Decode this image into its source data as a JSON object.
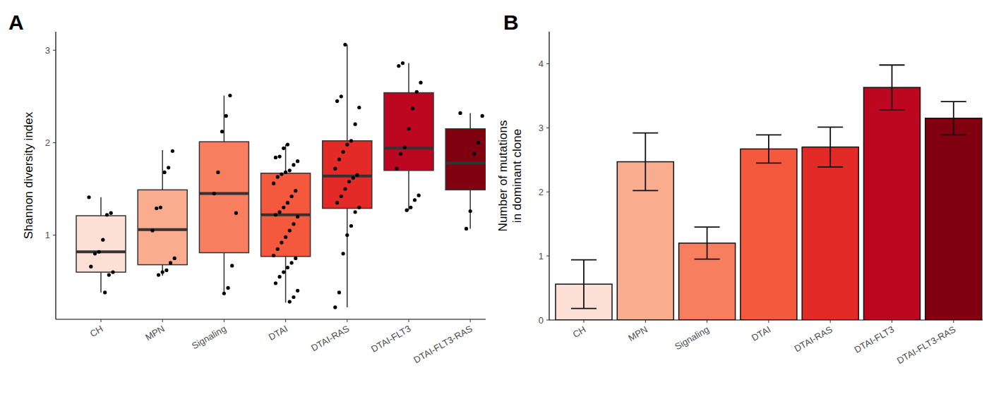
{
  "chart_data": [
    {
      "type": "box",
      "title": "A",
      "y_label": "Shannon diversity index",
      "categories": [
        "CH",
        "MPN",
        "Signaling",
        "DTAI",
        "DTAI-RAS",
        "DTAI-FLT3",
        "DTAI-FLT3-RAS"
      ],
      "colors": [
        "#fde0d5",
        "#f9ac8e",
        "#f77e5f",
        "#f4583d",
        "#e42a26",
        "#bd0720",
        "#800010"
      ],
      "boxes": [
        {
          "min": 0.38,
          "q1": 0.6,
          "median": 0.82,
          "q3": 1.21,
          "max": 1.41
        },
        {
          "min": 0.56,
          "q1": 0.68,
          "median": 1.06,
          "q3": 1.49,
          "max": 1.92
        },
        {
          "min": 0.36,
          "q1": 0.81,
          "median": 1.45,
          "q3": 2.01,
          "max": 2.51
        },
        {
          "min": 0.27,
          "q1": 0.77,
          "median": 1.22,
          "q3": 1.67,
          "max": 1.98
        },
        {
          "min": 0.22,
          "q1": 1.29,
          "median": 1.64,
          "q3": 2.02,
          "max": 3.06
        },
        {
          "min": 1.27,
          "q1": 1.7,
          "median": 1.94,
          "q3": 2.54,
          "max": 2.86
        },
        {
          "min": 1.07,
          "q1": 1.49,
          "median": 1.78,
          "q3": 2.15,
          "max": 2.32
        }
      ],
      "points": [
        [
          1.41,
          1.24,
          1.22,
          0.95,
          0.82,
          0.8,
          0.66,
          0.6,
          0.57,
          0.38
        ],
        [
          1.91,
          1.73,
          1.68,
          1.3,
          1.29,
          1.05,
          0.75,
          0.7,
          0.62,
          0.6,
          0.57
        ],
        [
          2.51,
          2.29,
          2.12,
          1.68,
          1.45,
          1.24,
          0.67,
          0.43,
          0.37
        ],
        [
          1.98,
          1.94,
          1.85,
          1.84,
          1.8,
          1.76,
          1.7,
          1.68,
          1.66,
          1.63,
          1.56,
          1.48,
          1.42,
          1.35,
          1.3,
          1.25,
          1.22,
          1.2,
          1.12,
          1.05,
          0.98,
          0.92,
          0.85,
          0.78,
          0.75,
          0.7,
          0.65,
          0.6,
          0.55,
          0.48,
          0.4,
          0.33,
          0.28
        ],
        [
          3.06,
          2.5,
          2.45,
          2.38,
          2.2,
          2.02,
          1.98,
          1.9,
          1.82,
          1.72,
          1.65,
          1.62,
          1.58,
          1.5,
          1.42,
          1.35,
          1.3,
          1.25,
          1.1,
          1.0,
          0.8,
          0.38,
          0.22
        ],
        [
          2.86,
          2.83,
          2.65,
          2.55,
          2.37,
          2.15,
          1.95,
          1.88,
          1.72,
          1.43,
          1.38,
          1.3,
          1.27
        ],
        [
          2.32,
          2.29,
          2.0,
          1.88,
          1.26,
          1.07
        ]
      ],
      "ylim": [
        0.09,
        3.2
      ],
      "yticks": [
        1,
        2,
        3
      ]
    },
    {
      "type": "bar",
      "title": "B",
      "y_label": "Number of mutations\nin dominant clone",
      "categories": [
        "CH",
        "MPN",
        "Signaling",
        "DTAI",
        "DTAI-RAS",
        "DTAI-FLT3",
        "DTAI-FLT3-RAS"
      ],
      "colors": [
        "#fde0d5",
        "#f9ac8e",
        "#f77e5f",
        "#f4583d",
        "#e42a26",
        "#bd0720",
        "#800010"
      ],
      "values": [
        0.56,
        2.47,
        1.2,
        2.67,
        2.7,
        3.63,
        3.15
      ],
      "errors": [
        0.38,
        0.45,
        0.25,
        0.22,
        0.31,
        0.35,
        0.26
      ],
      "ylim": [
        0,
        4.5
      ],
      "yticks": [
        0,
        1,
        2,
        3,
        4
      ]
    }
  ]
}
